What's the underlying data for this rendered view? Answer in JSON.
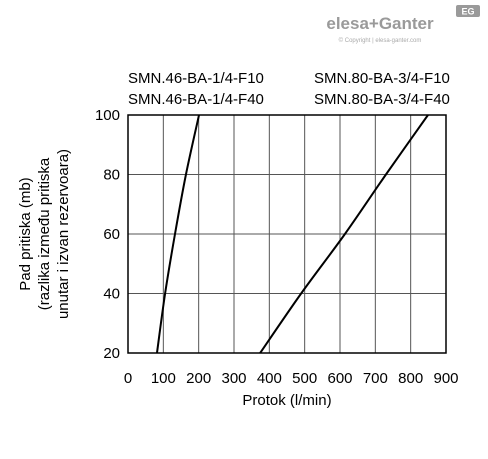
{
  "header": {
    "brand": "elesa+Ganter",
    "copyright": "© Copyright | elesa-ganter.com",
    "badge": "EG"
  },
  "chart_data": {
    "type": "line",
    "xlabel": "Protok (l/min)",
    "ylabel": [
      "Pad pritiska (mb)",
      "(razlika između pritiska",
      "unutar i izvan rezervoara)"
    ],
    "xlim": [
      0,
      900
    ],
    "xticks": [
      0,
      100,
      200,
      300,
      400,
      500,
      600,
      700,
      800,
      900
    ],
    "ylim": [
      20,
      100
    ],
    "yticks": [
      20,
      40,
      60,
      80,
      100
    ],
    "grid": true,
    "series": [
      {
        "names": [
          "SMN.46-BA-1/4-F10",
          "SMN.46-BA-1/4-F40"
        ],
        "color": "#000000",
        "x": [
          82,
          105,
          133,
          164,
          201
        ],
        "values": [
          20,
          40,
          60,
          80,
          100
        ]
      },
      {
        "names": [
          "SMN.80-BA-3/4-F10",
          "SMN.80-BA-3/4-F40"
        ],
        "color": "#000000",
        "x": [
          374,
          490,
          614,
          730,
          849
        ],
        "values": [
          20,
          40,
          60,
          80,
          100
        ]
      }
    ]
  }
}
